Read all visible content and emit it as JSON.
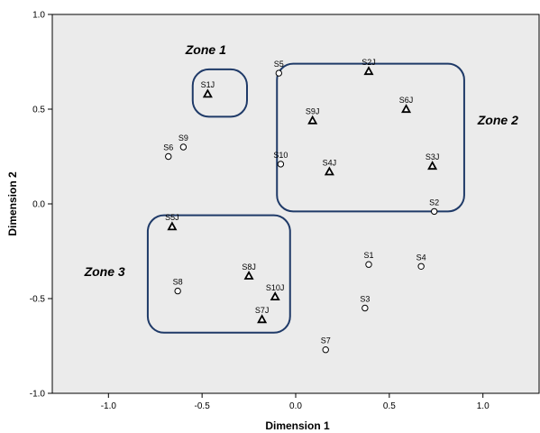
{
  "chart_data": {
    "type": "scatter",
    "xlabel": "Dimension 1",
    "ylabel": "Dimension 2",
    "xlim": [
      -1.3,
      1.3
    ],
    "ylim": [
      -1.0,
      1.0
    ],
    "x_ticks": [
      "-1.0",
      "-0.5",
      "0.0",
      "0.5",
      "1.0"
    ],
    "y_ticks": [
      "-1.0",
      "-0.5",
      "0.0",
      "0.5",
      "1.0"
    ],
    "grid": false,
    "background": "#ebebeb",
    "zone_color": "#1f3a68",
    "series": [
      {
        "marker": "circle",
        "points": [
          {
            "label": "S1",
            "x": 0.39,
            "y": -0.32
          },
          {
            "label": "S2",
            "x": 0.74,
            "y": -0.04
          },
          {
            "label": "S3",
            "x": 0.37,
            "y": -0.55
          },
          {
            "label": "S4",
            "x": 0.67,
            "y": -0.33
          },
          {
            "label": "S5",
            "x": -0.09,
            "y": 0.69
          },
          {
            "label": "S6",
            "x": -0.68,
            "y": 0.25
          },
          {
            "label": "S7",
            "x": 0.16,
            "y": -0.77
          },
          {
            "label": "S8",
            "x": -0.63,
            "y": -0.46
          },
          {
            "label": "S9",
            "x": -0.6,
            "y": 0.3
          },
          {
            "label": "S10",
            "x": -0.08,
            "y": 0.21
          }
        ]
      },
      {
        "marker": "triangle",
        "points": [
          {
            "label": "S1J",
            "x": -0.47,
            "y": 0.58
          },
          {
            "label": "S2J",
            "x": 0.39,
            "y": 0.7
          },
          {
            "label": "S3J",
            "x": 0.73,
            "y": 0.2
          },
          {
            "label": "S4J",
            "x": 0.18,
            "y": 0.17
          },
          {
            "label": "S5J",
            "x": -0.66,
            "y": -0.12
          },
          {
            "label": "S6J",
            "x": 0.59,
            "y": 0.5
          },
          {
            "label": "S7J",
            "x": -0.18,
            "y": -0.61
          },
          {
            "label": "S8J",
            "x": -0.25,
            "y": -0.38
          },
          {
            "label": "S9J",
            "x": 0.09,
            "y": 0.44
          },
          {
            "label": "S10J",
            "x": -0.11,
            "y": -0.49
          }
        ]
      }
    ],
    "zones": [
      {
        "label": "Zone 1",
        "x0": -0.55,
        "x1": -0.26,
        "y0": 0.46,
        "y1": 0.71,
        "label_x": -0.48,
        "label_y": 0.79
      },
      {
        "label": "Zone 2",
        "x0": -0.1,
        "x1": 0.9,
        "y0": -0.04,
        "y1": 0.74,
        "label_x": 1.08,
        "label_y": 0.42
      },
      {
        "label": "Zone 3",
        "x0": -0.79,
        "x1": -0.03,
        "y0": -0.68,
        "y1": -0.06,
        "label_x": -1.02,
        "label_y": -0.38
      }
    ]
  }
}
